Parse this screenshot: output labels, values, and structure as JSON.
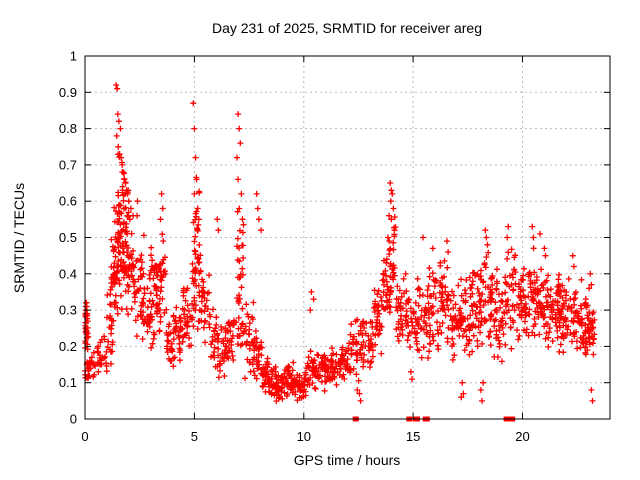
{
  "chart_data": {
    "type": "scatter",
    "title": "Day 231 of 2025, SRMTID for receiver areg",
    "xlabel": "GPS time / hours",
    "ylabel": "SRMTID / TECUs",
    "xlim": [
      0,
      24
    ],
    "ylim": [
      0,
      1
    ],
    "xticks": [
      0,
      5,
      10,
      15,
      20
    ],
    "xtick_labels": [
      "0",
      "5",
      "10",
      "15",
      "20"
    ],
    "yticks": [
      0,
      0.1,
      0.2,
      0.3,
      0.4,
      0.5,
      0.6,
      0.7,
      0.8,
      0.9,
      1
    ],
    "ytick_labels": [
      "0",
      "0.1",
      "0.2",
      "0.3",
      "0.4",
      "0.5",
      "0.6",
      "0.7",
      "0.8",
      "0.9",
      "1"
    ],
    "grid": true,
    "legend": "none",
    "marker": "plus",
    "marker_color": "#ff0000",
    "grid_color": "#bbbbbb",
    "border_color": "#000000",
    "background": "#ffffff",
    "seed": 231,
    "bands_format": "[x_start_hours, x_end_hours, y_low_TECUs, y_high_TECUs, point_count] — density envelope of the red '+' scatter read from the plot",
    "bands": [
      [
        0.0,
        0.15,
        0.17,
        0.33,
        28
      ],
      [
        0.0,
        0.15,
        0.09,
        0.17,
        10
      ],
      [
        0.15,
        0.6,
        0.1,
        0.22,
        22
      ],
      [
        0.6,
        1.0,
        0.1,
        0.25,
        20
      ],
      [
        1.0,
        1.3,
        0.13,
        0.38,
        22
      ],
      [
        1.2,
        1.45,
        0.3,
        0.52,
        14
      ],
      [
        1.3,
        1.6,
        0.25,
        0.62,
        38
      ],
      [
        1.45,
        1.8,
        0.35,
        0.78,
        30
      ],
      [
        1.6,
        2.0,
        0.28,
        0.7,
        45
      ],
      [
        1.9,
        2.3,
        0.25,
        0.55,
        35
      ],
      [
        2.3,
        2.7,
        0.2,
        0.52,
        32
      ],
      [
        2.7,
        3.1,
        0.16,
        0.4,
        32
      ],
      [
        3.0,
        3.3,
        0.3,
        0.52,
        14
      ],
      [
        3.1,
        3.5,
        0.2,
        0.48,
        32
      ],
      [
        3.4,
        3.7,
        0.25,
        0.56,
        18
      ],
      [
        3.7,
        4.1,
        0.12,
        0.32,
        30
      ],
      [
        4.1,
        4.5,
        0.15,
        0.33,
        28
      ],
      [
        4.5,
        4.9,
        0.18,
        0.4,
        28
      ],
      [
        4.9,
        5.3,
        0.22,
        0.58,
        40
      ],
      [
        5.0,
        5.25,
        0.38,
        0.7,
        12
      ],
      [
        5.3,
        5.7,
        0.18,
        0.42,
        28
      ],
      [
        5.7,
        6.1,
        0.13,
        0.32,
        26
      ],
      [
        6.1,
        6.5,
        0.1,
        0.28,
        26
      ],
      [
        6.5,
        6.9,
        0.12,
        0.35,
        28
      ],
      [
        6.9,
        7.3,
        0.15,
        0.6,
        40
      ],
      [
        7.3,
        7.7,
        0.1,
        0.35,
        26
      ],
      [
        7.7,
        8.1,
        0.08,
        0.3,
        30
      ],
      [
        8.1,
        8.6,
        0.05,
        0.18,
        40
      ],
      [
        8.6,
        9.1,
        0.04,
        0.15,
        42
      ],
      [
        9.1,
        9.6,
        0.05,
        0.16,
        40
      ],
      [
        9.6,
        10.1,
        0.04,
        0.14,
        40
      ],
      [
        10.1,
        10.6,
        0.06,
        0.2,
        34
      ],
      [
        10.6,
        11.1,
        0.07,
        0.19,
        34
      ],
      [
        11.1,
        11.6,
        0.08,
        0.2,
        34
      ],
      [
        11.6,
        12.1,
        0.09,
        0.23,
        34
      ],
      [
        12.1,
        12.6,
        0.1,
        0.28,
        32
      ],
      [
        12.6,
        13.1,
        0.12,
        0.3,
        32
      ],
      [
        13.1,
        13.6,
        0.15,
        0.4,
        36
      ],
      [
        13.6,
        14.0,
        0.22,
        0.5,
        34
      ],
      [
        13.9,
        14.2,
        0.3,
        0.58,
        20
      ],
      [
        14.2,
        14.7,
        0.18,
        0.42,
        34
      ],
      [
        14.7,
        15.2,
        0.14,
        0.38,
        32
      ],
      [
        15.2,
        15.7,
        0.15,
        0.4,
        32
      ],
      [
        15.7,
        16.2,
        0.16,
        0.44,
        36
      ],
      [
        16.2,
        16.7,
        0.18,
        0.45,
        38
      ],
      [
        16.7,
        17.2,
        0.14,
        0.4,
        38
      ],
      [
        17.2,
        17.7,
        0.15,
        0.43,
        40
      ],
      [
        17.7,
        18.2,
        0.16,
        0.46,
        40
      ],
      [
        18.2,
        18.7,
        0.18,
        0.48,
        40
      ],
      [
        18.7,
        19.2,
        0.15,
        0.42,
        38
      ],
      [
        19.2,
        19.7,
        0.18,
        0.48,
        38
      ],
      [
        19.7,
        20.2,
        0.18,
        0.44,
        40
      ],
      [
        20.2,
        20.7,
        0.2,
        0.48,
        40
      ],
      [
        20.7,
        21.2,
        0.18,
        0.44,
        42
      ],
      [
        21.2,
        21.7,
        0.18,
        0.42,
        42
      ],
      [
        21.7,
        22.2,
        0.17,
        0.4,
        40
      ],
      [
        22.2,
        22.7,
        0.16,
        0.4,
        38
      ],
      [
        22.7,
        23.05,
        0.16,
        0.36,
        30
      ],
      [
        23.0,
        23.3,
        0.17,
        0.33,
        30
      ]
    ],
    "outlier_points": [
      [
        0.05,
        0.32
      ],
      [
        0.08,
        0.31
      ],
      [
        0.03,
        0.3
      ],
      [
        0.1,
        0.29
      ],
      [
        1.42,
        0.92
      ],
      [
        1.47,
        0.91
      ],
      [
        1.5,
        0.84
      ],
      [
        1.55,
        0.82
      ],
      [
        1.62,
        0.8
      ],
      [
        1.45,
        0.78
      ],
      [
        1.52,
        0.75
      ],
      [
        1.58,
        0.73
      ],
      [
        1.65,
        0.72
      ],
      [
        1.7,
        0.7
      ],
      [
        1.75,
        0.68
      ],
      [
        1.8,
        0.66
      ],
      [
        1.85,
        0.65
      ],
      [
        1.72,
        0.64
      ],
      [
        1.9,
        0.63
      ],
      [
        1.95,
        0.62
      ],
      [
        2.0,
        0.6
      ],
      [
        2.1,
        0.58
      ],
      [
        2.2,
        0.56
      ],
      [
        2.05,
        0.55
      ],
      [
        2.4,
        0.6
      ],
      [
        2.38,
        0.56
      ],
      [
        3.5,
        0.62
      ],
      [
        3.55,
        0.58
      ],
      [
        3.45,
        0.55
      ],
      [
        4.95,
        0.87
      ],
      [
        5.0,
        0.8
      ],
      [
        5.05,
        0.72
      ],
      [
        5.1,
        0.66
      ],
      [
        5.0,
        0.62
      ],
      [
        5.15,
        0.58
      ],
      [
        5.2,
        0.55
      ],
      [
        6.05,
        0.55
      ],
      [
        6.1,
        0.52
      ],
      [
        7.0,
        0.84
      ],
      [
        7.05,
        0.8
      ],
      [
        7.1,
        0.76
      ],
      [
        6.95,
        0.72
      ],
      [
        7.0,
        0.66
      ],
      [
        7.15,
        0.62
      ],
      [
        7.05,
        0.58
      ],
      [
        7.2,
        0.55
      ],
      [
        7.85,
        0.62
      ],
      [
        7.9,
        0.58
      ],
      [
        7.95,
        0.55
      ],
      [
        8.05,
        0.52
      ],
      [
        10.35,
        0.35
      ],
      [
        10.45,
        0.33
      ],
      [
        10.3,
        0.3
      ],
      [
        12.45,
        0.08
      ],
      [
        12.55,
        0.07
      ],
      [
        12.6,
        0.05
      ],
      [
        13.95,
        0.65
      ],
      [
        14.0,
        0.63
      ],
      [
        14.05,
        0.62
      ],
      [
        13.98,
        0.6
      ],
      [
        14.1,
        0.58
      ],
      [
        13.9,
        0.56
      ],
      [
        14.0,
        0.55
      ],
      [
        14.15,
        0.52
      ],
      [
        13.85,
        0.5
      ],
      [
        14.9,
        0.13
      ],
      [
        14.95,
        0.11
      ],
      [
        15.45,
        0.5
      ],
      [
        15.9,
        0.47
      ],
      [
        16.55,
        0.49
      ],
      [
        16.6,
        0.46
      ],
      [
        17.25,
        0.1
      ],
      [
        17.3,
        0.07
      ],
      [
        17.2,
        0.06
      ],
      [
        18.1,
        0.08
      ],
      [
        18.15,
        0.05
      ],
      [
        18.2,
        0.1
      ],
      [
        18.3,
        0.52
      ],
      [
        18.35,
        0.5
      ],
      [
        18.4,
        0.48
      ],
      [
        19.35,
        0.53
      ],
      [
        19.3,
        0.5
      ],
      [
        20.45,
        0.53
      ],
      [
        20.5,
        0.5
      ],
      [
        20.8,
        0.51
      ],
      [
        21.0,
        0.47
      ],
      [
        21.05,
        0.45
      ],
      [
        22.3,
        0.45
      ],
      [
        22.35,
        0.42
      ],
      [
        23.1,
        0.4
      ],
      [
        23.15,
        0.37
      ],
      [
        23.05,
        0.36
      ],
      [
        23.15,
        0.08
      ],
      [
        23.2,
        0.05
      ]
    ],
    "zero_marker_note": "filled red squares sitting on the x-axis at y=0",
    "zero_marker_x": [
      12.35,
      12.4,
      14.8,
      14.85,
      15.1,
      15.15,
      15.2,
      15.55,
      15.6,
      15.65,
      19.25,
      19.3,
      19.45,
      19.5,
      19.55
    ]
  }
}
